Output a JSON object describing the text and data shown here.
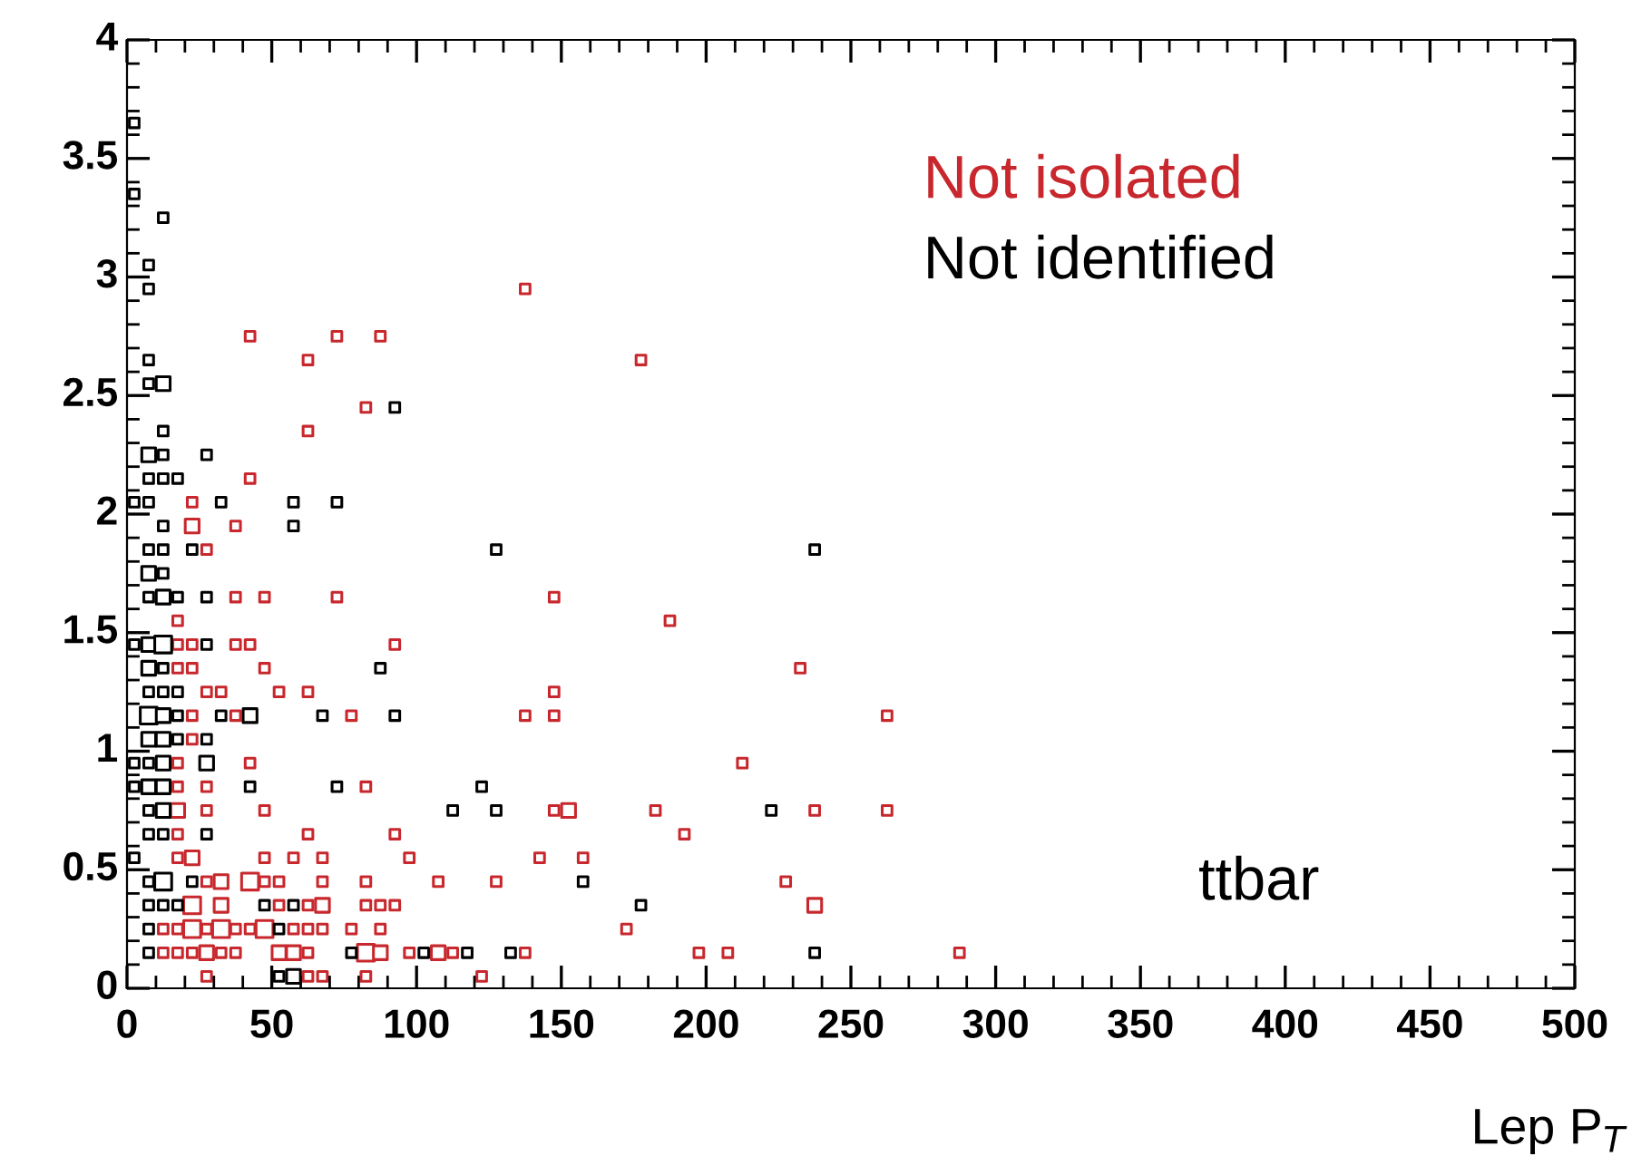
{
  "chart_data": {
    "type": "bubble",
    "xlabel": "Lep P$_{T}$",
    "annotations": [
      "ttbar"
    ],
    "legend": "top right",
    "marker": "square",
    "grid": false,
    "xlim": [
      0,
      500
    ],
    "xticks": [
      0,
      50,
      100,
      150,
      200,
      250,
      300,
      350,
      400,
      450,
      500
    ],
    "ylim": [
      0,
      4
    ],
    "yticks": [
      0,
      0.5,
      1,
      1.5,
      2,
      2.5,
      3,
      3.5,
      4
    ],
    "series": [
      {
        "name": "Not isolated",
        "color": "#c8282d",
        "x": [
          137.5,
          42.5,
          72.5,
          87.5,
          62.5,
          177.5,
          82.5,
          62.5,
          42.5,
          22.5,
          22.5,
          37.5,
          27.5,
          37.5,
          47.5,
          72.5,
          147.5,
          17.5,
          187.5,
          17.5,
          22.5,
          37.5,
          42.5,
          92.5,
          17.5,
          22.5,
          47.5,
          232.5,
          27.5,
          32.5,
          52.5,
          62.5,
          147.5,
          22.5,
          37.5,
          77.5,
          137.5,
          147.5,
          262.5,
          22.5,
          17.5,
          42.5,
          212.5,
          17.5,
          27.5,
          82.5,
          17.5,
          27.5,
          47.5,
          147.5,
          152.5,
          182.5,
          237.5,
          262.5,
          17.5,
          62.5,
          92.5,
          192.5,
          17.5,
          22.5,
          47.5,
          57.5,
          67.5,
          97.5,
          142.5,
          157.5,
          27.5,
          32.5,
          42.5,
          47.5,
          52.5,
          67.5,
          82.5,
          107.5,
          127.5,
          227.5,
          22.5,
          32.5,
          52.5,
          62.5,
          67.5,
          82.5,
          87.5,
          92.5,
          237.5,
          12.5,
          17.5,
          22.5,
          27.5,
          32.5,
          37.5,
          42.5,
          47.5,
          57.5,
          62.5,
          67.5,
          77.5,
          87.5,
          172.5,
          12.5,
          17.5,
          22.5,
          27.5,
          32.5,
          37.5,
          52.5,
          57.5,
          62.5,
          82.5,
          87.5,
          97.5,
          107.5,
          112.5,
          137.5,
          197.5,
          207.5,
          287.5,
          27.5,
          62.5,
          67.5,
          82.5,
          122.5
        ],
        "values": [
          2.95,
          2.75,
          2.75,
          2.75,
          2.65,
          2.65,
          2.45,
          2.35,
          2.15,
          2.05,
          1.95,
          1.95,
          1.85,
          1.65,
          1.65,
          1.65,
          1.65,
          1.55,
          1.55,
          1.45,
          1.45,
          1.45,
          1.45,
          1.45,
          1.35,
          1.35,
          1.35,
          1.35,
          1.25,
          1.25,
          1.25,
          1.25,
          1.25,
          1.15,
          1.15,
          1.15,
          1.15,
          1.15,
          1.15,
          1.05,
          0.95,
          0.95,
          0.95,
          0.85,
          0.85,
          0.85,
          0.75,
          0.75,
          0.75,
          0.75,
          0.75,
          0.75,
          0.75,
          0.75,
          0.65,
          0.65,
          0.65,
          0.65,
          0.55,
          0.55,
          0.55,
          0.55,
          0.55,
          0.55,
          0.55,
          0.55,
          0.45,
          0.45,
          0.45,
          0.45,
          0.45,
          0.45,
          0.45,
          0.45,
          0.45,
          0.45,
          0.35,
          0.35,
          0.35,
          0.35,
          0.35,
          0.35,
          0.35,
          0.35,
          0.35,
          0.25,
          0.25,
          0.25,
          0.25,
          0.25,
          0.25,
          0.25,
          0.25,
          0.25,
          0.25,
          0.25,
          0.25,
          0.25,
          0.25,
          0.15,
          0.15,
          0.15,
          0.15,
          0.15,
          0.15,
          0.15,
          0.15,
          0.15,
          0.15,
          0.15,
          0.15,
          0.15,
          0.15,
          0.15,
          0.15,
          0.15,
          0.15,
          0.05,
          0.05,
          0.05,
          0.05,
          0.05
        ],
        "sizes": [
          0.33,
          0.33,
          0.33,
          0.33,
          0.33,
          0.33,
          0.33,
          0.33,
          0.33,
          0.33,
          0.67,
          0.33,
          0.33,
          0.33,
          0.33,
          0.33,
          0.33,
          0.33,
          0.33,
          0.33,
          0.33,
          0.33,
          0.33,
          0.33,
          0.33,
          0.33,
          0.33,
          0.33,
          0.33,
          0.33,
          0.33,
          0.33,
          0.33,
          0.33,
          0.33,
          0.33,
          0.33,
          0.33,
          0.33,
          0.33,
          0.33,
          0.33,
          0.33,
          0.33,
          0.33,
          0.33,
          0.67,
          0.33,
          0.33,
          0.33,
          0.67,
          0.33,
          0.33,
          0.33,
          0.33,
          0.33,
          0.33,
          0.33,
          0.33,
          0.67,
          0.33,
          0.33,
          0.33,
          0.33,
          0.33,
          0.33,
          0.33,
          0.67,
          1,
          0.33,
          0.33,
          0.33,
          0.33,
          0.33,
          0.33,
          0.33,
          1,
          0.67,
          0.33,
          0.33,
          0.67,
          0.33,
          0.33,
          0.33,
          0.67,
          0.33,
          0.33,
          1,
          0.33,
          1,
          0.33,
          0.33,
          1,
          0.33,
          0.33,
          0.33,
          0.33,
          0.33,
          0.33,
          0.33,
          0.33,
          0.33,
          0.67,
          0.33,
          0.33,
          0.67,
          0.67,
          0.33,
          1,
          0.67,
          0.33,
          0.67,
          0.33,
          0.33,
          0.33,
          0.33,
          0.33,
          0.33,
          0.33,
          0.33,
          0.33,
          0.33
        ]
      },
      {
        "name": "Not identified",
        "color": "#000000",
        "x": [
          2.5,
          2.5,
          12.5,
          7.5,
          7.5,
          7.5,
          7.5,
          12.5,
          92.5,
          12.5,
          7.5,
          12.5,
          27.5,
          7.5,
          12.5,
          17.5,
          2.5,
          7.5,
          32.5,
          57.5,
          72.5,
          12.5,
          57.5,
          7.5,
          12.5,
          22.5,
          127.5,
          237.5,
          7.5,
          12.5,
          7.5,
          12.5,
          17.5,
          27.5,
          2.5,
          7.5,
          12.5,
          27.5,
          7.5,
          12.5,
          87.5,
          7.5,
          12.5,
          17.5,
          7.5,
          12.5,
          17.5,
          32.5,
          42.5,
          67.5,
          92.5,
          7.5,
          12.5,
          17.5,
          27.5,
          2.5,
          7.5,
          12.5,
          27.5,
          2.5,
          7.5,
          12.5,
          42.5,
          72.5,
          122.5,
          7.5,
          12.5,
          112.5,
          127.5,
          222.5,
          7.5,
          12.5,
          27.5,
          2.5,
          7.5,
          12.5,
          22.5,
          157.5,
          7.5,
          12.5,
          17.5,
          47.5,
          57.5,
          177.5,
          7.5,
          52.5,
          7.5,
          77.5,
          102.5,
          117.5,
          132.5,
          237.5,
          52.5,
          57.5
        ],
        "values": [
          3.65,
          3.35,
          3.25,
          3.05,
          2.95,
          2.65,
          2.55,
          2.55,
          2.45,
          2.35,
          2.25,
          2.25,
          2.25,
          2.15,
          2.15,
          2.15,
          2.05,
          2.05,
          2.05,
          2.05,
          2.05,
          1.95,
          1.95,
          1.85,
          1.85,
          1.85,
          1.85,
          1.85,
          1.75,
          1.75,
          1.65,
          1.65,
          1.65,
          1.65,
          1.45,
          1.45,
          1.45,
          1.45,
          1.35,
          1.35,
          1.35,
          1.25,
          1.25,
          1.25,
          1.15,
          1.15,
          1.15,
          1.15,
          1.15,
          1.15,
          1.15,
          1.05,
          1.05,
          1.05,
          1.05,
          0.95,
          0.95,
          0.95,
          0.95,
          0.85,
          0.85,
          0.85,
          0.85,
          0.85,
          0.85,
          0.75,
          0.75,
          0.75,
          0.75,
          0.75,
          0.65,
          0.65,
          0.65,
          0.55,
          0.45,
          0.45,
          0.45,
          0.45,
          0.35,
          0.35,
          0.35,
          0.35,
          0.35,
          0.35,
          0.25,
          0.25,
          0.15,
          0.15,
          0.15,
          0.15,
          0.15,
          0.15,
          0.05,
          0.05
        ],
        "sizes": [
          0.33,
          0.33,
          0.33,
          0.33,
          0.33,
          0.33,
          0.33,
          0.67,
          0.33,
          0.33,
          0.67,
          0.33,
          0.33,
          0.33,
          0.33,
          0.33,
          0.33,
          0.33,
          0.33,
          0.33,
          0.33,
          0.33,
          0.33,
          0.33,
          0.33,
          0.33,
          0.33,
          0.33,
          0.67,
          0.33,
          0.33,
          0.67,
          0.33,
          0.33,
          0.33,
          0.67,
          1,
          0.33,
          0.67,
          0.33,
          0.33,
          0.33,
          0.33,
          0.33,
          1,
          0.67,
          0.33,
          0.33,
          0.67,
          0.33,
          0.33,
          0.67,
          0.67,
          0.33,
          0.33,
          0.33,
          0.33,
          0.67,
          0.67,
          0.33,
          0.67,
          0.67,
          0.33,
          0.33,
          0.33,
          0.33,
          0.67,
          0.33,
          0.33,
          0.33,
          0.33,
          0.33,
          0.33,
          0.33,
          0.33,
          1,
          0.33,
          0.33,
          0.33,
          0.33,
          0.33,
          0.33,
          0.33,
          0.33,
          0.33,
          0.33,
          0.33,
          0.33,
          0.33,
          0.33,
          0.33,
          0.33,
          0.33,
          0.67
        ]
      }
    ]
  }
}
